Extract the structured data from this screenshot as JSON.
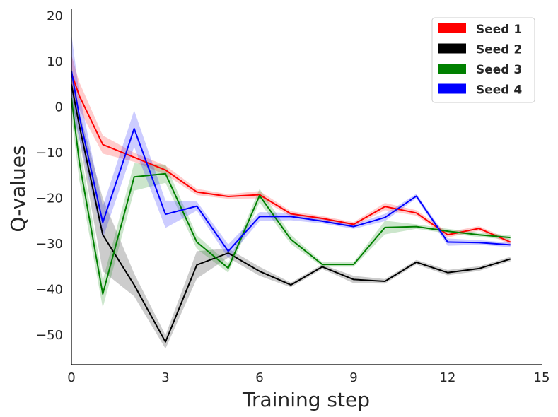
{
  "chart_data": {
    "type": "line",
    "title": "",
    "xlabel": "Training step",
    "ylabel": "Q-values",
    "xlim": [
      0,
      15
    ],
    "ylim": [
      -56.5,
      21.5
    ],
    "xticks": [
      0,
      3,
      6,
      9,
      12,
      15
    ],
    "yticks": [
      20,
      10,
      0,
      -10,
      -20,
      -30,
      -40,
      -50
    ],
    "xtick_labels": [
      "0",
      "3",
      "6",
      "9",
      "12",
      "15"
    ],
    "ytick_labels": [
      "20",
      "10",
      "0",
      "−10",
      "−20",
      "−30",
      "−40",
      "−50"
    ],
    "grid": false,
    "legend_position": "top-right",
    "x": [
      0,
      0.25,
      1,
      2,
      3,
      4,
      5,
      6,
      7,
      8,
      9,
      10,
      11,
      12,
      13,
      14
    ],
    "series": [
      {
        "name": "Seed 1",
        "color": "#ff0000",
        "values": [
          7.5,
          2.5,
          -8.2,
          -11.0,
          -13.8,
          -18.6,
          -19.6,
          -19.2,
          -23.4,
          -24.4,
          -25.7,
          -21.8,
          -23.2,
          -28.0,
          -26.6,
          -29.6
        ],
        "band": [
          4.0,
          3.0,
          2.0,
          1.0,
          1.0,
          0.7,
          0.5,
          0.8,
          0.6,
          0.5,
          0.5,
          0.8,
          0.6,
          0.6,
          0.5,
          0.5
        ]
      },
      {
        "name": "Seed 2",
        "color": "#000000",
        "values": [
          5.0,
          -4.0,
          -28.0,
          -39.0,
          -51.5,
          -34.6,
          -32.0,
          -36.0,
          -39.0,
          -35.0,
          -37.8,
          -38.2,
          -34.0,
          -36.3,
          -35.4,
          -33.3
        ],
        "band": [
          3.0,
          3.0,
          8.0,
          2.5,
          1.5,
          3.0,
          1.0,
          1.0,
          0.5,
          0.5,
          0.8,
          0.5,
          0.5,
          0.6,
          0.5,
          0.5
        ]
      },
      {
        "name": "Seed 3",
        "color": "#008000",
        "values": [
          2.0,
          -12.0,
          -41.0,
          -15.3,
          -14.6,
          -29.6,
          -35.3,
          -19.4,
          -29.0,
          -34.5,
          -34.5,
          -26.4,
          -26.2,
          -27.2,
          -28.0,
          -28.6
        ],
        "band": [
          4.0,
          4.0,
          3.0,
          3.0,
          2.0,
          1.5,
          1.0,
          1.5,
          1.0,
          0.5,
          0.5,
          1.5,
          0.5,
          0.5,
          0.5,
          0.5
        ]
      },
      {
        "name": "Seed 4",
        "color": "#0000ff",
        "values": [
          8.0,
          -2.0,
          -25.3,
          -4.7,
          -23.5,
          -21.7,
          -31.6,
          -24.0,
          -24.0,
          -25.0,
          -26.2,
          -24.2,
          -19.5,
          -29.6,
          -29.7,
          -30.2
        ],
        "band": [
          8.0,
          5.0,
          3.5,
          4.0,
          3.0,
          1.0,
          1.5,
          1.0,
          0.8,
          0.5,
          0.5,
          0.8,
          0.5,
          0.8,
          0.5,
          0.5
        ]
      }
    ]
  }
}
